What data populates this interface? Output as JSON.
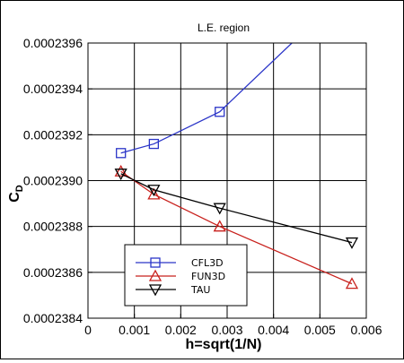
{
  "chart_data": {
    "type": "line",
    "title": "L.E. region",
    "xlabel": "h=sqrt(1/N)",
    "ylabel_main": "C",
    "ylabel_sub": "D",
    "xlim": [
      0,
      0.006
    ],
    "ylim": [
      0.0002384,
      0.0002396
    ],
    "xticks": [
      0,
      0.001,
      0.002,
      0.003,
      0.004,
      0.005,
      0.006
    ],
    "xtick_labels": [
      "0",
      "0.001",
      "0.002",
      "0.003",
      "0.004",
      "0.005",
      "0.006"
    ],
    "yticks": [
      0.0002384,
      0.0002386,
      0.0002388,
      0.000239,
      0.0002392,
      0.0002394,
      0.0002396
    ],
    "ytick_labels": [
      "0.0002384",
      "0.0002386",
      "0.0002388",
      "0.0002390",
      "0.0002392",
      "0.0002394",
      "0.0002396"
    ],
    "grid": true,
    "legend_position": "bottom-left",
    "series": [
      {
        "name": "CFL3D",
        "color": "#2b35c8",
        "marker": "square",
        "x": [
          0.00071,
          0.00142,
          0.00284,
          0.0045
        ],
        "y": [
          0.00023912,
          0.00023916,
          0.0002393,
          0.00023962
        ]
      },
      {
        "name": "FUN3D",
        "color": "#c8201c",
        "marker": "triangle-up",
        "x": [
          0.00071,
          0.00142,
          0.00284,
          0.00569
        ],
        "y": [
          0.00023904,
          0.00023894,
          0.0002388,
          0.00023855
        ]
      },
      {
        "name": "TAU",
        "color": "#000000",
        "marker": "triangle-down",
        "x": [
          0.00071,
          0.00142,
          0.00284,
          0.00569
        ],
        "y": [
          0.00023903,
          0.00023896,
          0.00023888,
          0.00023873
        ]
      }
    ]
  }
}
